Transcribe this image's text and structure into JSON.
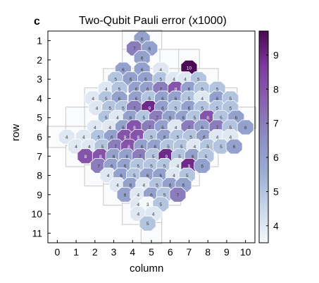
{
  "panel_letter": "c",
  "chart_data": {
    "type": "heatmap",
    "title": "Two-Qubit Pauli error (x1000)",
    "xlabel": "column",
    "ylabel": "row",
    "x_ticks": [
      0,
      1,
      2,
      3,
      4,
      5,
      6,
      7,
      8,
      9,
      10
    ],
    "y_ticks": [
      1,
      2,
      3,
      4,
      5,
      6,
      7,
      8,
      9,
      10,
      11
    ],
    "xlim": [
      -0.5,
      10.5
    ],
    "ylim": [
      0.5,
      11.5
    ],
    "y_reversed": true,
    "colorbar": {
      "min": 3.5,
      "max": 9.7,
      "ticks": [
        4,
        5,
        6,
        7,
        8,
        9
      ],
      "colormap": "blue-purple"
    },
    "qubits": [
      [
        4,
        1
      ],
      [
        5,
        1
      ],
      [
        4,
        2
      ],
      [
        5,
        2
      ],
      [
        6,
        2
      ],
      [
        7,
        2
      ],
      [
        3,
        3
      ],
      [
        4,
        3
      ],
      [
        5,
        3
      ],
      [
        6,
        3
      ],
      [
        7,
        3
      ],
      [
        8,
        3
      ],
      [
        2,
        4
      ],
      [
        3,
        4
      ],
      [
        4,
        4
      ],
      [
        5,
        4
      ],
      [
        6,
        4
      ],
      [
        7,
        4
      ],
      [
        8,
        4
      ],
      [
        9,
        4
      ],
      [
        1,
        5
      ],
      [
        2,
        5
      ],
      [
        3,
        5
      ],
      [
        4,
        5
      ],
      [
        5,
        5
      ],
      [
        6,
        5
      ],
      [
        7,
        5
      ],
      [
        8,
        5
      ],
      [
        9,
        5
      ],
      [
        10,
        5
      ],
      [
        0,
        6
      ],
      [
        1,
        6
      ],
      [
        2,
        6
      ],
      [
        3,
        6
      ],
      [
        4,
        6
      ],
      [
        5,
        6
      ],
      [
        6,
        6
      ],
      [
        7,
        6
      ],
      [
        8,
        6
      ],
      [
        9,
        6
      ],
      [
        1,
        7
      ],
      [
        2,
        7
      ],
      [
        3,
        7
      ],
      [
        4,
        7
      ],
      [
        5,
        7
      ],
      [
        6,
        7
      ],
      [
        7,
        7
      ],
      [
        8,
        7
      ],
      [
        2,
        8
      ],
      [
        3,
        8
      ],
      [
        4,
        8
      ],
      [
        5,
        8
      ],
      [
        6,
        8
      ],
      [
        7,
        8
      ],
      [
        3,
        9
      ],
      [
        4,
        9
      ],
      [
        5,
        9
      ],
      [
        6,
        9
      ],
      [
        4,
        10
      ],
      [
        5,
        10
      ],
      [
        5,
        11
      ]
    ],
    "pairs": [
      {
        "x": 4.5,
        "y": 0.9,
        "v": 6
      },
      {
        "x": 4.1,
        "y": 1.4,
        "v": 7
      },
      {
        "x": 4.9,
        "y": 1.4,
        "v": 6
      },
      {
        "x": 4.5,
        "y": 1.9,
        "v": 6
      },
      {
        "x": 7.0,
        "y": 2.4,
        "v": 10
      },
      {
        "x": 3.5,
        "y": 2.5,
        "v": 6
      },
      {
        "x": 4.5,
        "y": 2.5,
        "v": 6
      },
      {
        "x": 5.5,
        "y": 2.5,
        "v": 4
      },
      {
        "x": 3.1,
        "y": 3.0,
        "v": 5
      },
      {
        "x": 3.9,
        "y": 3.0,
        "v": 6
      },
      {
        "x": 4.7,
        "y": 3.0,
        "v": 6
      },
      {
        "x": 5.5,
        "y": 3.0,
        "v": 5
      },
      {
        "x": 6.2,
        "y": 3.0,
        "v": 4
      },
      {
        "x": 6.8,
        "y": 3.0,
        "v": 4
      },
      {
        "x": 7.5,
        "y": 3.0,
        "v": 5
      },
      {
        "x": 2.6,
        "y": 3.5,
        "v": 4
      },
      {
        "x": 3.3,
        "y": 3.5,
        "v": 5
      },
      {
        "x": 4.2,
        "y": 3.5,
        "v": 6
      },
      {
        "x": 4.8,
        "y": 3.5,
        "v": 6
      },
      {
        "x": 5.5,
        "y": 3.5,
        "v": 7
      },
      {
        "x": 6.3,
        "y": 3.5,
        "v": 8
      },
      {
        "x": 7.0,
        "y": 3.5,
        "v": 6
      },
      {
        "x": 7.7,
        "y": 3.5,
        "v": 5
      },
      {
        "x": 8.5,
        "y": 3.5,
        "v": 5
      },
      {
        "x": 1.9,
        "y": 4.0,
        "v": 4
      },
      {
        "x": 2.6,
        "y": 4.0,
        "v": 5
      },
      {
        "x": 3.3,
        "y": 4.0,
        "v": 6
      },
      {
        "x": 4.2,
        "y": 4.0,
        "v": 6
      },
      {
        "x": 4.9,
        "y": 4.0,
        "v": 5
      },
      {
        "x": 5.6,
        "y": 4.0,
        "v": 6
      },
      {
        "x": 6.3,
        "y": 4.0,
        "v": 6
      },
      {
        "x": 7.0,
        "y": 4.0,
        "v": 5
      },
      {
        "x": 7.7,
        "y": 4.0,
        "v": 4
      },
      {
        "x": 8.5,
        "y": 4.0,
        "v": 6
      },
      {
        "x": 9.2,
        "y": 4.0,
        "v": 5
      },
      {
        "x": 2.1,
        "y": 4.5,
        "v": 4
      },
      {
        "x": 2.8,
        "y": 4.5,
        "v": 5
      },
      {
        "x": 3.5,
        "y": 4.5,
        "v": 5
      },
      {
        "x": 4.1,
        "y": 4.5,
        "v": 7
      },
      {
        "x": 4.9,
        "y": 4.5,
        "v": 9
      },
      {
        "x": 5.6,
        "y": 4.5,
        "v": 6
      },
      {
        "x": 6.3,
        "y": 4.5,
        "v": 5
      },
      {
        "x": 7.0,
        "y": 4.5,
        "v": 6
      },
      {
        "x": 7.7,
        "y": 4.5,
        "v": 5
      },
      {
        "x": 8.5,
        "y": 4.5,
        "v": 5
      },
      {
        "x": 9.2,
        "y": 4.5,
        "v": 5
      },
      {
        "x": 2.6,
        "y": 5.0,
        "v": 5
      },
      {
        "x": 3.2,
        "y": 5.0,
        "v": 4
      },
      {
        "x": 3.9,
        "y": 5.0,
        "v": 6
      },
      {
        "x": 4.6,
        "y": 5.0,
        "v": 5
      },
      {
        "x": 5.3,
        "y": 5.0,
        "v": 7
      },
      {
        "x": 6.0,
        "y": 5.0,
        "v": 6
      },
      {
        "x": 6.7,
        "y": 5.0,
        "v": 6
      },
      {
        "x": 7.3,
        "y": 5.0,
        "v": 5
      },
      {
        "x": 8.0,
        "y": 5.0,
        "v": 8
      },
      {
        "x": 8.7,
        "y": 5.0,
        "v": 5
      },
      {
        "x": 9.5,
        "y": 5.0,
        "v": 6
      },
      {
        "x": 2.0,
        "y": 5.5,
        "v": 4
      },
      {
        "x": 2.8,
        "y": 5.5,
        "v": 4
      },
      {
        "x": 3.5,
        "y": 5.5,
        "v": 6
      },
      {
        "x": 4.1,
        "y": 5.5,
        "v": 8
      },
      {
        "x": 4.9,
        "y": 5.5,
        "v": 7
      },
      {
        "x": 5.6,
        "y": 5.5,
        "v": 6
      },
      {
        "x": 6.3,
        "y": 5.5,
        "v": 4
      },
      {
        "x": 7.0,
        "y": 5.5,
        "v": 7
      },
      {
        "x": 7.7,
        "y": 5.5,
        "v": 6
      },
      {
        "x": 8.5,
        "y": 5.5,
        "v": 7
      },
      {
        "x": 9.2,
        "y": 5.5,
        "v": 5
      },
      {
        "x": 10.0,
        "y": 5.5,
        "v": 6
      },
      {
        "x": 0.5,
        "y": 6.0,
        "v": 4
      },
      {
        "x": 1.4,
        "y": 6.0,
        "v": 4
      },
      {
        "x": 2.2,
        "y": 6.0,
        "v": 5
      },
      {
        "x": 2.9,
        "y": 6.0,
        "v": 6
      },
      {
        "x": 3.6,
        "y": 6.0,
        "v": 8
      },
      {
        "x": 4.3,
        "y": 6.0,
        "v": 8
      },
      {
        "x": 5.0,
        "y": 6.0,
        "v": 5
      },
      {
        "x": 5.7,
        "y": 6.0,
        "v": 6
      },
      {
        "x": 6.4,
        "y": 6.0,
        "v": 5
      },
      {
        "x": 7.1,
        "y": 6.0,
        "v": 5
      },
      {
        "x": 7.8,
        "y": 6.0,
        "v": 6
      },
      {
        "x": 8.5,
        "y": 6.0,
        "v": 4
      },
      {
        "x": 9.2,
        "y": 6.0,
        "v": 4
      },
      {
        "x": 1.0,
        "y": 6.5,
        "v": 4
      },
      {
        "x": 1.7,
        "y": 6.5,
        "v": 4
      },
      {
        "x": 2.4,
        "y": 6.5,
        "v": 5
      },
      {
        "x": 3.1,
        "y": 6.5,
        "v": 7
      },
      {
        "x": 3.8,
        "y": 6.5,
        "v": 8
      },
      {
        "x": 4.5,
        "y": 6.5,
        "v": 6
      },
      {
        "x": 5.2,
        "y": 6.5,
        "v": 6
      },
      {
        "x": 5.9,
        "y": 6.5,
        "v": 5
      },
      {
        "x": 6.6,
        "y": 6.5,
        "v": 5
      },
      {
        "x": 7.3,
        "y": 6.5,
        "v": 4
      },
      {
        "x": 8.0,
        "y": 6.5,
        "v": 5
      },
      {
        "x": 8.7,
        "y": 6.5,
        "v": 5
      },
      {
        "x": 9.4,
        "y": 6.5,
        "v": 6
      },
      {
        "x": 1.5,
        "y": 7.0,
        "v": 8
      },
      {
        "x": 2.3,
        "y": 7.0,
        "v": 8
      },
      {
        "x": 3.0,
        "y": 7.0,
        "v": 6
      },
      {
        "x": 3.7,
        "y": 7.0,
        "v": 6
      },
      {
        "x": 4.4,
        "y": 7.0,
        "v": 7
      },
      {
        "x": 5.1,
        "y": 7.0,
        "v": 5
      },
      {
        "x": 5.8,
        "y": 7.0,
        "v": 9
      },
      {
        "x": 6.5,
        "y": 7.0,
        "v": 5
      },
      {
        "x": 7.2,
        "y": 7.0,
        "v": 6
      },
      {
        "x": 7.9,
        "y": 7.0,
        "v": 5
      },
      {
        "x": 2.2,
        "y": 7.5,
        "v": 7
      },
      {
        "x": 2.9,
        "y": 7.5,
        "v": 6
      },
      {
        "x": 3.6,
        "y": 7.5,
        "v": 6
      },
      {
        "x": 4.3,
        "y": 7.5,
        "v": 5
      },
      {
        "x": 5.0,
        "y": 7.5,
        "v": 5
      },
      {
        "x": 5.7,
        "y": 7.5,
        "v": 5
      },
      {
        "x": 6.4,
        "y": 7.5,
        "v": 4
      },
      {
        "x": 7.0,
        "y": 7.5,
        "v": 9
      },
      {
        "x": 7.7,
        "y": 7.5,
        "v": 6
      },
      {
        "x": 2.7,
        "y": 8.0,
        "v": 4
      },
      {
        "x": 3.4,
        "y": 8.0,
        "v": 6
      },
      {
        "x": 4.1,
        "y": 8.0,
        "v": 5
      },
      {
        "x": 4.8,
        "y": 8.0,
        "v": 6
      },
      {
        "x": 5.5,
        "y": 8.0,
        "v": 6
      },
      {
        "x": 6.2,
        "y": 8.0,
        "v": 4
      },
      {
        "x": 6.9,
        "y": 8.0,
        "v": 5
      },
      {
        "x": 3.2,
        "y": 8.5,
        "v": 4
      },
      {
        "x": 3.9,
        "y": 8.5,
        "v": 6
      },
      {
        "x": 4.6,
        "y": 8.5,
        "v": 4
      },
      {
        "x": 5.3,
        "y": 8.5,
        "v": 5
      },
      {
        "x": 6.0,
        "y": 8.5,
        "v": 6
      },
      {
        "x": 6.7,
        "y": 8.5,
        "v": 6
      },
      {
        "x": 3.6,
        "y": 9.0,
        "v": 6
      },
      {
        "x": 4.3,
        "y": 9.0,
        "v": 4
      },
      {
        "x": 5.0,
        "y": 9.0,
        "v": 6
      },
      {
        "x": 5.7,
        "y": 9.0,
        "v": 5
      },
      {
        "x": 6.4,
        "y": 9.0,
        "v": 7
      },
      {
        "x": 4.3,
        "y": 9.5,
        "v": 4
      },
      {
        "x": 4.8,
        "y": 9.5,
        "v": 3
      },
      {
        "x": 5.5,
        "y": 9.5,
        "v": 5
      },
      {
        "x": 4.3,
        "y": 10.0,
        "v": 4
      },
      {
        "x": 5.1,
        "y": 10.0,
        "v": 4
      },
      {
        "x": 4.8,
        "y": 10.5,
        "v": 5
      }
    ]
  },
  "colors": {
    "stops": [
      "#f4f8fb",
      "#c8d6e9",
      "#9aaed2",
      "#8c8ec4",
      "#8a63b0",
      "#7d3a9f",
      "#4a0a55"
    ],
    "grid_line": "#cfcfcf",
    "frame": "#000000",
    "label_dark": "#333333",
    "label_light": "#ffffff"
  }
}
